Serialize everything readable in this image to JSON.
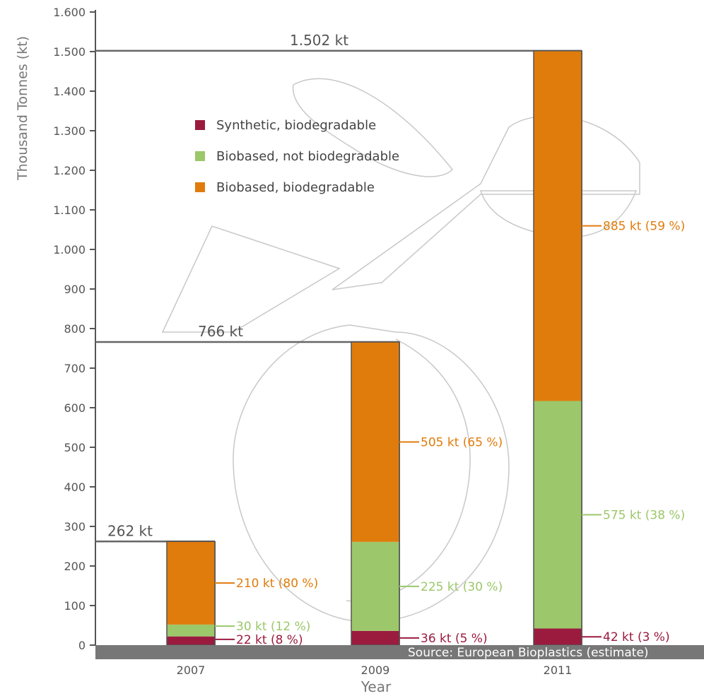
{
  "chart_data": {
    "type": "bar",
    "stacked": true,
    "ylabel": "Thousand Tonnes (kt)",
    "xlabel": "Year",
    "categories": [
      "2007",
      "2009",
      "2011"
    ],
    "ylim": [
      0,
      1600
    ],
    "yticks": [
      0,
      100,
      200,
      300,
      400,
      500,
      600,
      700,
      800,
      900,
      1000,
      1100,
      1200,
      1300,
      1400,
      1500,
      1600
    ],
    "ytick_labels": [
      "0",
      "100",
      "200",
      "300",
      "400",
      "500",
      "600",
      "700",
      "800",
      "900",
      "1.000",
      "1.100",
      "1.200",
      "1.300",
      "1.400",
      "1.500",
      "1.600"
    ],
    "series": [
      {
        "name": "Synthetic, biodegradable",
        "color": "#9b1b3f",
        "values": [
          22,
          36,
          42
        ],
        "labels": [
          "22 kt (8 %)",
          "36 kt (5 %)",
          "42 kt (3 %)"
        ]
      },
      {
        "name": "Biobased, not biodegradable",
        "color": "#9cc76a",
        "values": [
          30,
          225,
          575
        ],
        "labels": [
          "30 kt (12 %)",
          "225 kt (30 %)",
          "575 kt (38 %)"
        ]
      },
      {
        "name": "Biobased, biodegradable",
        "color": "#e07c0c",
        "values": [
          210,
          505,
          885
        ],
        "labels": [
          "210 kt (80 %)",
          "505 kt (65 %)",
          "885 kt (59 %)"
        ]
      }
    ],
    "totals": [
      262,
      766,
      1502
    ],
    "total_labels": [
      "262 kt",
      "766 kt",
      "1.502 kt"
    ],
    "legend_position": "top-left",
    "grid": false,
    "source": "Source: European Bioplastics (estimate)",
    "colors": {
      "axis": "#555555",
      "frame": "#666666",
      "baseline": "#777777"
    }
  }
}
